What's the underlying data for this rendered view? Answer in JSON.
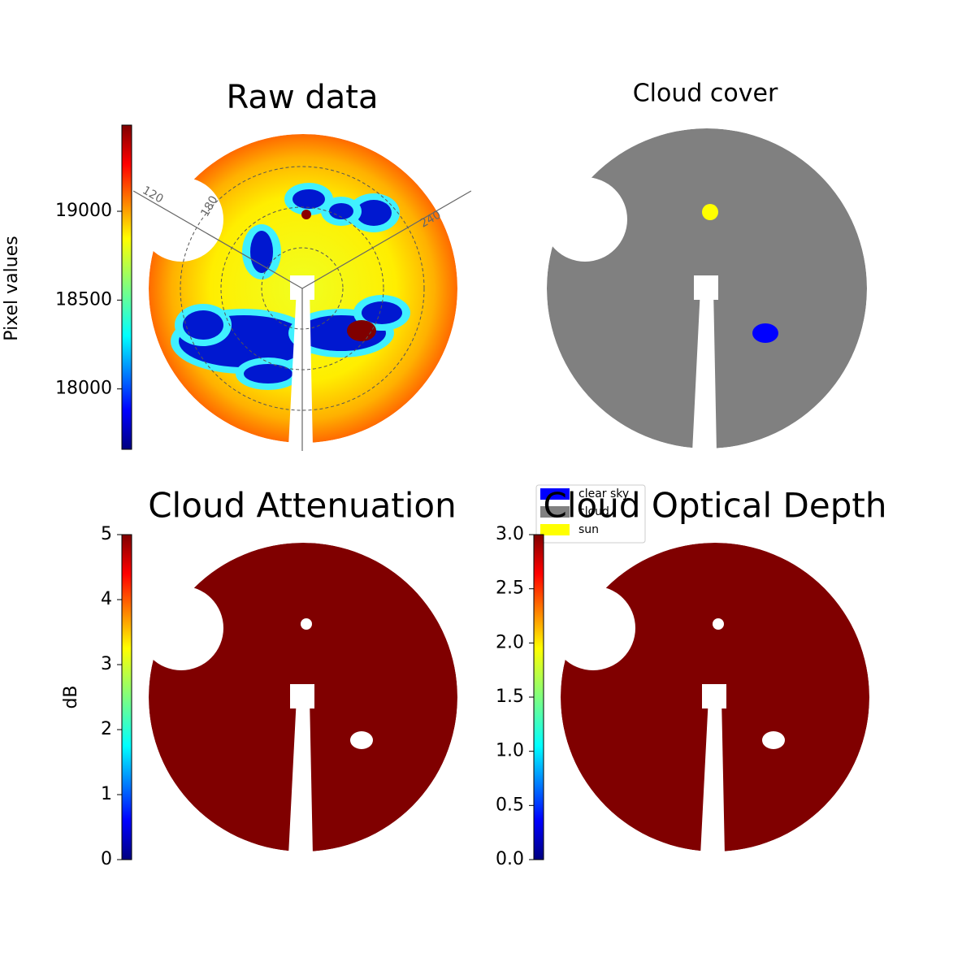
{
  "chart_data": [
    {
      "type": "image",
      "title": "Raw data",
      "colorbar": {
        "label": "Pixel values",
        "lim": [
          17660,
          19485
        ],
        "ticks": [
          18000,
          18500,
          19000
        ]
      },
      "annotations": [
        "120",
        "180",
        "240"
      ]
    },
    {
      "type": "categorical",
      "title": "Cloud cover",
      "legend": "lower left",
      "series": [
        {
          "name": "clear sky",
          "color": "#0000ff"
        },
        {
          "name": "cloud",
          "color": "#808080"
        },
        {
          "name": "sun",
          "color": "#ffff00"
        }
      ]
    },
    {
      "type": "image",
      "title": "Cloud Attenuation",
      "color": "#800000",
      "colorbar": {
        "label": "dB",
        "lim": [
          0,
          5
        ],
        "ticks": [
          0,
          1,
          2,
          3,
          4,
          5
        ]
      }
    },
    {
      "type": "image",
      "title": "Cloud Optical Depth",
      "color": "#800000",
      "colorbar": {
        "lim": [
          0,
          3
        ],
        "ticks": [
          {
            "value": 0,
            "label": "0.0"
          },
          0.5,
          {
            "value": 1,
            "label": "1.0"
          },
          1.5,
          {
            "value": 2,
            "label": "2.0"
          },
          2.5,
          {
            "value": 3,
            "label": "3.0"
          }
        ]
      }
    }
  ]
}
